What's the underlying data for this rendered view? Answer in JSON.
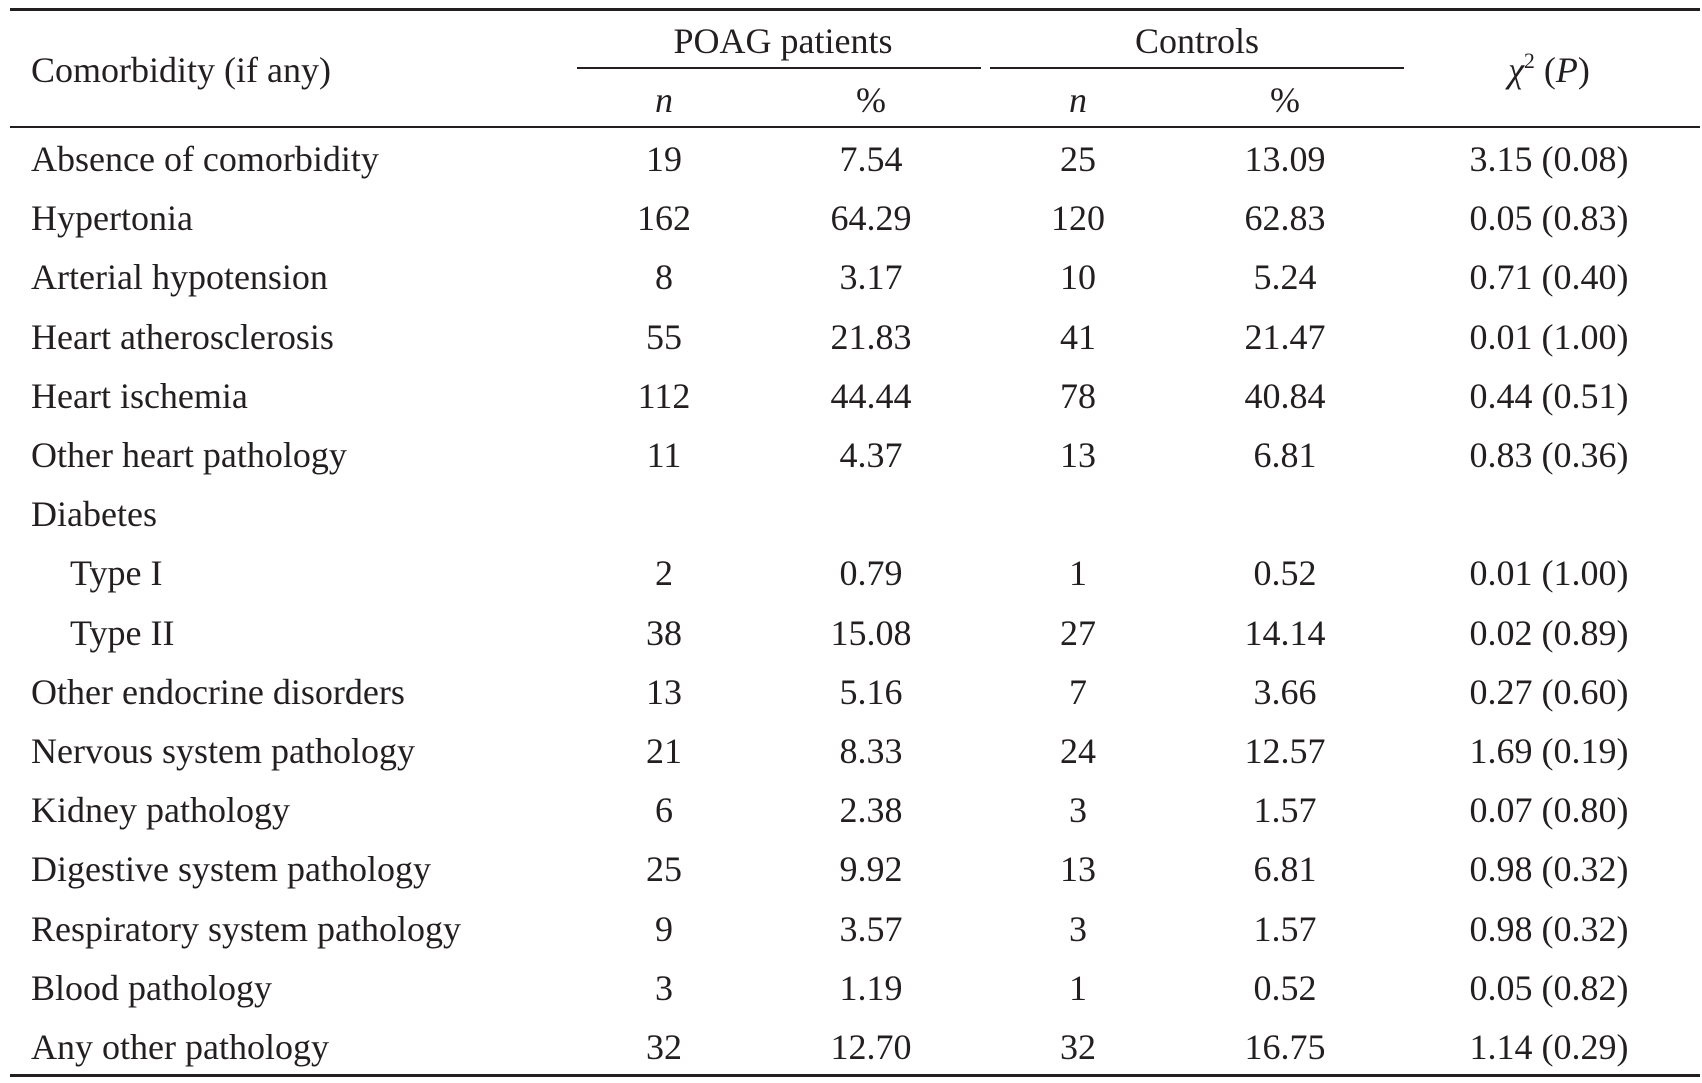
{
  "header": {
    "row_label": "Comorbidity (if any)",
    "group1": "POAG patients",
    "group2": "Controls",
    "n": "n",
    "percent": "%",
    "stat_chi": "χ",
    "stat_sup": "2",
    "stat_open": " (",
    "stat_p": "P",
    "stat_close": ")"
  },
  "rows": [
    {
      "label": "Absence of comorbidity",
      "poag_n": "19",
      "poag_pct": "7.54",
      "ctrl_n": "25",
      "ctrl_pct": "13.09",
      "stat": "3.15 (0.08)"
    },
    {
      "label": "Hypertonia",
      "poag_n": "162",
      "poag_pct": "64.29",
      "ctrl_n": "120",
      "ctrl_pct": "62.83",
      "stat": "0.05 (0.83)"
    },
    {
      "label": "Arterial hypotension",
      "poag_n": "8",
      "poag_pct": "3.17",
      "ctrl_n": "10",
      "ctrl_pct": "5.24",
      "stat": "0.71 (0.40)"
    },
    {
      "label": "Heart atherosclerosis",
      "poag_n": "55",
      "poag_pct": "21.83",
      "ctrl_n": "41",
      "ctrl_pct": "21.47",
      "stat": "0.01 (1.00)"
    },
    {
      "label": "Heart ischemia",
      "poag_n": "112",
      "poag_pct": "44.44",
      "ctrl_n": "78",
      "ctrl_pct": "40.84",
      "stat": "0.44 (0.51)"
    },
    {
      "label": "Other heart pathology",
      "poag_n": "11",
      "poag_pct": "4.37",
      "ctrl_n": "13",
      "ctrl_pct": "6.81",
      "stat": "0.83 (0.36)"
    },
    {
      "label": "Diabetes",
      "poag_n": "",
      "poag_pct": "",
      "ctrl_n": "",
      "ctrl_pct": "",
      "stat": ""
    },
    {
      "label": "Type I",
      "indent": true,
      "poag_n": "2",
      "poag_pct": "0.79",
      "ctrl_n": "1",
      "ctrl_pct": "0.52",
      "stat": "0.01 (1.00)"
    },
    {
      "label": "Type II",
      "indent": true,
      "poag_n": "38",
      "poag_pct": "15.08",
      "ctrl_n": "27",
      "ctrl_pct": "14.14",
      "stat": "0.02 (0.89)"
    },
    {
      "label": "Other endocrine disorders",
      "poag_n": "13",
      "poag_pct": "5.16",
      "ctrl_n": "7",
      "ctrl_pct": "3.66",
      "stat": "0.27 (0.60)"
    },
    {
      "label": "Nervous system pathology",
      "poag_n": "21",
      "poag_pct": "8.33",
      "ctrl_n": "24",
      "ctrl_pct": "12.57",
      "stat": "1.69 (0.19)"
    },
    {
      "label": "Kidney pathology",
      "poag_n": "6",
      "poag_pct": "2.38",
      "ctrl_n": "3",
      "ctrl_pct": "1.57",
      "stat": "0.07 (0.80)"
    },
    {
      "label": "Digestive system pathology",
      "poag_n": "25",
      "poag_pct": "9.92",
      "ctrl_n": "13",
      "ctrl_pct": "6.81",
      "stat": "0.98 (0.32)"
    },
    {
      "label": "Respiratory system pathology",
      "poag_n": "9",
      "poag_pct": "3.57",
      "ctrl_n": "3",
      "ctrl_pct": "1.57",
      "stat": "0.98 (0.32)"
    },
    {
      "label": "Blood pathology",
      "poag_n": "3",
      "poag_pct": "1.19",
      "ctrl_n": "1",
      "ctrl_pct": "0.52",
      "stat": "0.05 (0.82)"
    },
    {
      "label": "Any other pathology",
      "poag_n": "32",
      "poag_pct": "12.70",
      "ctrl_n": "32",
      "ctrl_pct": "16.75",
      "stat": "1.14 (0.29)"
    }
  ]
}
